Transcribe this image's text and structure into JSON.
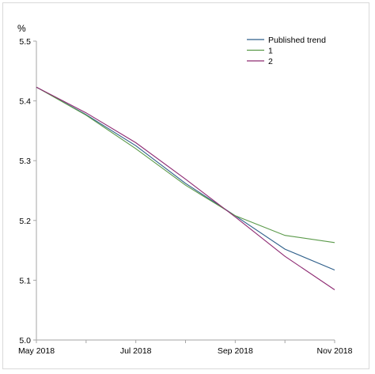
{
  "chart_data": {
    "type": "line",
    "title": "",
    "ylabel": "%",
    "xlabel": "",
    "ylim": [
      5.0,
      5.5
    ],
    "yticks": [
      5.0,
      5.1,
      5.2,
      5.3,
      5.4,
      5.5
    ],
    "ytick_labels": [
      "5.0",
      "5.1",
      "5.2",
      "5.3",
      "5.4",
      "5.5"
    ],
    "x": [
      "May 2018",
      "Jun 2018",
      "Jul 2018",
      "Aug 2018",
      "Sep 2018",
      "Oct 2018",
      "Nov 2018"
    ],
    "xtick_labels": [
      "May 2018",
      "Jul 2018",
      "Sep 2018",
      "Nov 2018"
    ],
    "legend_position": "top-right",
    "grid": false,
    "series": [
      {
        "name": "Published trend",
        "color": "#2e5f8a",
        "values": [
          5.423,
          5.377,
          5.325,
          5.262,
          5.208,
          5.152,
          5.117
        ]
      },
      {
        "name": "1",
        "color": "#5b9a4a",
        "values": [
          5.423,
          5.376,
          5.32,
          5.259,
          5.208,
          5.175,
          5.163
        ]
      },
      {
        "name": "2",
        "color": "#8e2a72",
        "values": [
          5.423,
          5.38,
          5.33,
          5.269,
          5.206,
          5.14,
          5.084
        ]
      }
    ]
  }
}
